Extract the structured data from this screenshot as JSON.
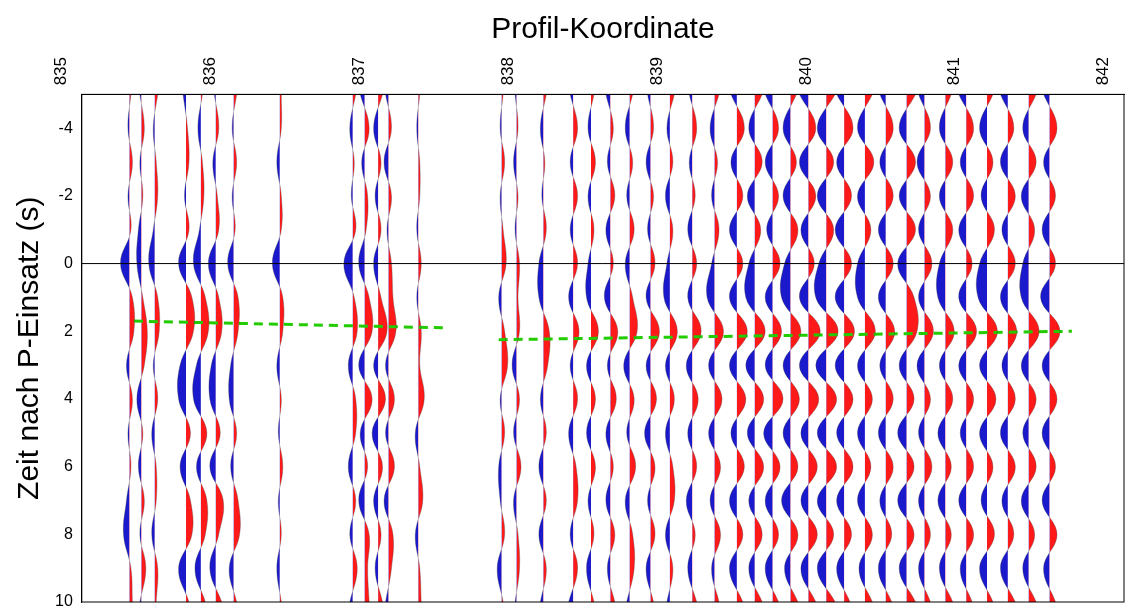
{
  "chart_data": {
    "type": "wiggle",
    "x_label": "Profil-Koordinate",
    "y_label": "Zeit nach P-Einsatz (s)",
    "xlim": [
      835,
      842
    ],
    "xticks": [
      835,
      836,
      837,
      838,
      839,
      840,
      841,
      842
    ],
    "ylim": [
      -5,
      10
    ],
    "yticks": [
      -4,
      -2,
      0,
      2,
      4,
      6,
      8,
      10
    ],
    "grid": false,
    "colors": [
      "#ff1a1a",
      "#1a1acc"
    ],
    "y": [
      -5,
      -4,
      -3,
      -2,
      -1,
      0,
      1,
      2,
      3,
      4,
      5,
      6,
      7,
      8,
      9,
      10
    ],
    "series": [
      {
        "x": 835.32,
        "values": [
          0.01,
          -0.01,
          0.02,
          -0.01,
          0.01,
          -0.06,
          0.02,
          0.03,
          -0.02,
          0.02,
          -0.01,
          0.01,
          -0.02,
          -0.04,
          0.01,
          0.02
        ]
      },
      {
        "x": 835.4,
        "values": [
          -0.01,
          0.02,
          -0.01,
          0.01,
          -0.02,
          -0.03,
          0.01,
          0.04,
          0.02,
          -0.03,
          0.01,
          -0.02,
          0.02,
          -0.01,
          0.03,
          -0.01
        ]
      },
      {
        "x": 835.49,
        "values": [
          0.02,
          -0.01,
          0.01,
          0.02,
          -0.01,
          -0.04,
          0.02,
          0.03,
          -0.01,
          0.02,
          -0.02,
          0.01,
          0.01,
          -0.02,
          0.02,
          0.01
        ]
      },
      {
        "x": 835.7,
        "values": [
          -0.02,
          0.01,
          0.02,
          -0.01,
          0.02,
          -0.05,
          0.04,
          0.05,
          -0.04,
          -0.05,
          0.03,
          -0.04,
          0.03,
          0.04,
          -0.05,
          0.02
        ]
      },
      {
        "x": 835.8,
        "values": [
          0.01,
          -0.02,
          0.01,
          0.02,
          -0.01,
          -0.05,
          0.03,
          0.05,
          -0.03,
          -0.05,
          0.04,
          -0.03,
          0.04,
          0.03,
          -0.04,
          0.03
        ]
      },
      {
        "x": 835.9,
        "values": [
          -0.01,
          0.02,
          -0.02,
          0.01,
          0.02,
          -0.05,
          0.02,
          0.04,
          -0.03,
          -0.04,
          0.03,
          -0.04,
          0.05,
          0.02,
          -0.04,
          0.04
        ]
      },
      {
        "x": 836.02,
        "values": [
          0.02,
          -0.01,
          0.02,
          -0.01,
          0.01,
          -0.04,
          0.03,
          0.03,
          -0.02,
          -0.03,
          0.02,
          -0.02,
          0.03,
          0.04,
          -0.03,
          0.02
        ]
      },
      {
        "x": 836.33,
        "values": [
          0.01,
          0.01,
          -0.02,
          0.01,
          0.01,
          -0.05,
          0.02,
          0.02,
          -0.02,
          0.01,
          -0.01,
          0.02,
          -0.01,
          0.01,
          -0.02,
          0.01
        ]
      },
      {
        "x": 836.82,
        "values": [
          0.02,
          -0.02,
          0.01,
          -0.01,
          0.02,
          -0.06,
          0.01,
          0.03,
          -0.03,
          0.02,
          0.02,
          -0.03,
          0.02,
          -0.02,
          0.03,
          -0.02
        ]
      },
      {
        "x": 836.9,
        "values": [
          -0.03,
          0.03,
          -0.02,
          0.02,
          0.01,
          -0.04,
          0.03,
          0.05,
          -0.04,
          0.05,
          -0.03,
          0.02,
          -0.04,
          0.03,
          0.02,
          0.03
        ]
      },
      {
        "x": 836.99,
        "values": [
          0.03,
          -0.03,
          0.02,
          -0.02,
          0.02,
          -0.03,
          0.02,
          0.06,
          -0.03,
          0.05,
          -0.04,
          0.03,
          -0.03,
          0.02,
          -0.02,
          0.03
        ]
      },
      {
        "x": 837.06,
        "values": [
          -0.02,
          0.02,
          -0.03,
          0.02,
          -0.01,
          0.02,
          0.03,
          0.05,
          -0.02,
          0.04,
          -0.02,
          0.04,
          -0.03,
          0.03,
          0.02,
          -0.02
        ]
      },
      {
        "x": 837.26,
        "values": [
          0.01,
          -0.01,
          0.01,
          0.01,
          -0.01,
          0.02,
          -0.01,
          0.02,
          0.01,
          0.04,
          -0.02,
          0.01,
          0.03,
          -0.02,
          0.01,
          0.02
        ]
      },
      {
        "x": 837.82,
        "values": [
          0.01,
          -0.01,
          0.02,
          -0.01,
          0.01,
          0.03,
          -0.02,
          0.02,
          0.04,
          -0.01,
          0.02,
          -0.02,
          -0.01,
          0.02,
          -0.03,
          0.01
        ]
      },
      {
        "x": 837.92,
        "values": [
          -0.01,
          0.01,
          -0.02,
          0.01,
          -0.01,
          0.02,
          0.01,
          0.02,
          -0.03,
          0.02,
          -0.02,
          0.03,
          -0.02,
          0.01,
          0.02,
          -0.01
        ]
      },
      {
        "x": 838.1,
        "values": [
          0.02,
          -0.02,
          0.01,
          -0.01,
          0.02,
          -0.03,
          -0.03,
          0.04,
          0.03,
          -0.02,
          0.02,
          -0.03,
          0.02,
          -0.03,
          0.02,
          -0.02
        ]
      },
      {
        "x": 838.3,
        "values": [
          -0.02,
          0.03,
          -0.02,
          0.03,
          -0.02,
          0.03,
          -0.03,
          0.04,
          -0.02,
          0.03,
          -0.03,
          0.02,
          0.03,
          -0.02,
          0.03,
          -0.03
        ]
      },
      {
        "x": 838.42,
        "values": [
          0.02,
          -0.02,
          0.03,
          -0.02,
          0.02,
          -0.02,
          -0.03,
          0.05,
          -0.03,
          0.03,
          -0.03,
          0.03,
          -0.02,
          0.02,
          -0.03,
          0.02
        ]
      },
      {
        "x": 838.55,
        "values": [
          -0.03,
          0.02,
          -0.02,
          0.03,
          -0.03,
          0.02,
          -0.04,
          0.05,
          -0.02,
          0.04,
          -0.03,
          0.02,
          -0.03,
          0.03,
          -0.02,
          0.03
        ]
      },
      {
        "x": 838.68,
        "values": [
          0.02,
          -0.03,
          0.02,
          -0.02,
          0.03,
          -0.03,
          0.02,
          0.05,
          -0.04,
          0.03,
          -0.02,
          0.04,
          -0.03,
          0.02,
          0.03,
          -0.02
        ]
      },
      {
        "x": 838.82,
        "values": [
          -0.02,
          0.02,
          -0.03,
          0.02,
          -0.02,
          0.03,
          -0.03,
          0.06,
          -0.03,
          0.04,
          -0.04,
          0.03,
          -0.02,
          0.03,
          -0.03,
          0.02
        ]
      },
      {
        "x": 838.95,
        "values": [
          0.03,
          -0.02,
          0.02,
          -0.03,
          0.02,
          -0.02,
          -0.04,
          0.05,
          -0.03,
          0.03,
          -0.03,
          0.02,
          0.03,
          -0.03,
          0.02,
          -0.02
        ]
      },
      {
        "x": 839.1,
        "values": [
          -0.02,
          0.03,
          -0.02,
          0.02,
          -0.03,
          0.03,
          -0.03,
          0.06,
          -0.04,
          0.04,
          -0.03,
          0.03,
          -0.04,
          0.02,
          -0.03,
          0.03
        ]
      },
      {
        "x": 839.25,
        "values": [
          0.03,
          -0.03,
          0.02,
          -0.02,
          0.03,
          -0.02,
          -0.05,
          0.06,
          -0.04,
          0.05,
          -0.04,
          0.04,
          -0.03,
          0.04,
          -0.02,
          0.03
        ]
      },
      {
        "x": 839.4,
        "values": [
          -0.04,
          0.05,
          -0.04,
          0.04,
          -0.05,
          0.04,
          -0.05,
          0.07,
          -0.05,
          0.06,
          -0.04,
          0.05,
          -0.05,
          0.04,
          -0.05,
          0.04
        ]
      },
      {
        "x": 839.52,
        "values": [
          0.05,
          -0.04,
          0.05,
          -0.05,
          0.04,
          -0.04,
          -0.06,
          0.07,
          -0.06,
          0.06,
          -0.05,
          0.06,
          -0.04,
          0.05,
          -0.04,
          0.05
        ]
      },
      {
        "x": 839.64,
        "values": [
          -0.05,
          0.04,
          -0.05,
          0.04,
          -0.04,
          0.05,
          -0.05,
          0.06,
          -0.05,
          0.07,
          -0.06,
          0.05,
          -0.05,
          0.04,
          -0.05,
          0.04
        ]
      },
      {
        "x": 839.76,
        "values": [
          0.04,
          -0.05,
          0.04,
          -0.05,
          0.05,
          -0.04,
          -0.06,
          0.07,
          -0.05,
          0.06,
          -0.05,
          0.05,
          -0.06,
          0.05,
          -0.04,
          0.05
        ]
      },
      {
        "x": 839.88,
        "values": [
          -0.06,
          0.05,
          -0.06,
          0.05,
          -0.05,
          0.04,
          -0.06,
          0.08,
          -0.06,
          0.07,
          -0.05,
          0.06,
          -0.05,
          0.06,
          -0.05,
          0.05
        ]
      },
      {
        "x": 840.0,
        "values": [
          0.06,
          -0.06,
          0.05,
          -0.06,
          0.05,
          -0.05,
          -0.07,
          0.08,
          -0.07,
          0.07,
          -0.06,
          0.07,
          -0.06,
          0.05,
          -0.06,
          0.06
        ]
      },
      {
        "x": 840.12,
        "values": [
          -0.05,
          0.06,
          -0.05,
          0.05,
          -0.06,
          0.05,
          -0.06,
          0.07,
          -0.06,
          0.06,
          -0.05,
          0.06,
          -0.05,
          0.05,
          -0.05,
          0.04
        ]
      },
      {
        "x": 840.26,
        "values": [
          0.05,
          -0.05,
          0.06,
          -0.05,
          0.04,
          -0.05,
          -0.05,
          0.07,
          -0.05,
          0.05,
          -0.05,
          0.04,
          -0.05,
          0.05,
          -0.04,
          0.05
        ]
      },
      {
        "x": 840.4,
        "values": [
          -0.04,
          0.05,
          -0.04,
          0.05,
          -0.05,
          0.05,
          -0.05,
          0.06,
          -0.04,
          0.05,
          -0.05,
          0.05,
          -0.04,
          0.04,
          -0.05,
          0.04
        ]
      },
      {
        "x": 840.54,
        "values": [
          0.06,
          -0.05,
          0.06,
          -0.05,
          0.06,
          -0.06,
          0.05,
          0.07,
          -0.05,
          0.05,
          -0.06,
          0.05,
          -0.06,
          0.05,
          -0.05,
          0.06
        ]
      },
      {
        "x": 840.66,
        "values": [
          -0.04,
          0.04,
          -0.05,
          0.04,
          -0.04,
          0.05,
          -0.04,
          0.06,
          -0.05,
          0.04,
          -0.04,
          0.05,
          -0.04,
          0.04,
          -0.04,
          0.04
        ]
      },
      {
        "x": 840.8,
        "values": [
          0.04,
          -0.04,
          0.05,
          -0.04,
          0.05,
          -0.04,
          -0.05,
          0.06,
          -0.04,
          0.05,
          -0.05,
          0.04,
          -0.05,
          0.04,
          -0.04,
          0.05
        ]
      },
      {
        "x": 840.94,
        "values": [
          -0.05,
          0.05,
          -0.04,
          0.05,
          -0.05,
          0.04,
          -0.05,
          0.07,
          -0.05,
          0.05,
          -0.04,
          0.05,
          -0.05,
          0.05,
          -0.04,
          0.04
        ]
      },
      {
        "x": 841.08,
        "values": [
          0.04,
          -0.05,
          0.04,
          -0.04,
          0.05,
          -0.05,
          -0.06,
          0.07,
          -0.05,
          0.06,
          -0.05,
          0.04,
          -0.04,
          0.05,
          -0.05,
          0.04
        ]
      },
      {
        "x": 841.22,
        "values": [
          -0.05,
          0.04,
          -0.05,
          0.05,
          -0.04,
          0.05,
          -0.05,
          0.06,
          -0.04,
          0.05,
          -0.05,
          0.05,
          -0.04,
          0.04,
          -0.05,
          0.05
        ]
      },
      {
        "x": 841.36,
        "values": [
          0.05,
          -0.04,
          0.05,
          -0.05,
          0.04,
          -0.04,
          -0.05,
          0.07,
          -0.05,
          0.05,
          -0.04,
          0.05,
          -0.05,
          0.04,
          -0.04,
          0.05
        ]
      },
      {
        "x": 841.5,
        "values": [
          -0.04,
          0.05,
          -0.04,
          0.04,
          -0.05,
          0.04,
          -0.06,
          0.07,
          -0.05,
          0.05,
          -0.05,
          0.04,
          -0.05,
          0.05,
          -0.04,
          0.04
        ]
      }
    ],
    "annotations": [
      {
        "type": "line",
        "x": [
          835,
          842
        ],
        "y": [
          0,
          0
        ],
        "color": "#000000",
        "line_style": "solid"
      },
      {
        "type": "line",
        "x": [
          835.35,
          837.45
        ],
        "y": [
          1.7,
          1.9
        ],
        "color": "#22cc00",
        "line_style": "dashed"
      },
      {
        "type": "line",
        "x": [
          837.8,
          841.65
        ],
        "y": [
          2.25,
          2.0
        ],
        "color": "#22cc00",
        "line_style": "dashed"
      }
    ]
  }
}
